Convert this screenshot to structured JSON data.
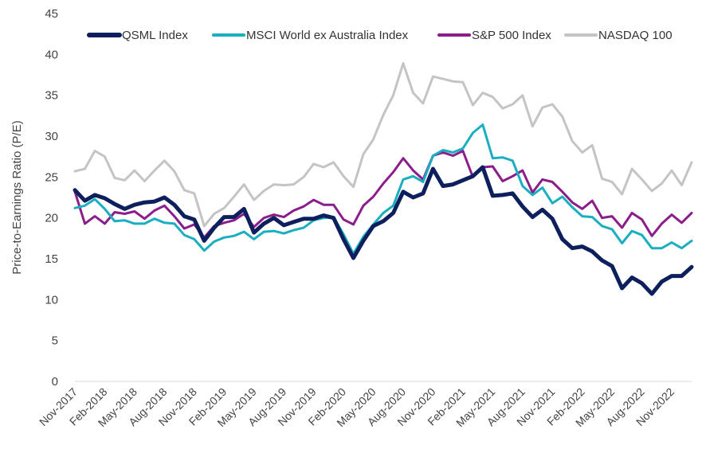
{
  "chart_data": {
    "type": "line",
    "title": "",
    "xlabel": "",
    "ylabel": "Price-to-Earnings Ratio (P/E)",
    "ylim": [
      0,
      45
    ],
    "yticks": [
      0,
      5,
      10,
      15,
      20,
      25,
      30,
      35,
      40,
      45
    ],
    "grid": false,
    "legend_position": "top",
    "x_tick_labels": [
      "Nov-2017",
      "Feb-2018",
      "May-2018",
      "Aug-2018",
      "Nov-2018",
      "Feb-2019",
      "May-2019",
      "Aug-2019",
      "Nov-2019",
      "Feb-2020",
      "May-2020",
      "Aug-2020",
      "Nov-2020",
      "Feb-2021",
      "May-2021",
      "Aug-2021",
      "Nov-2021",
      "Feb-2022",
      "May-2022",
      "Aug-2022",
      "Nov-2022"
    ],
    "x_tick_every": 3,
    "n_points": 63,
    "series": [
      {
        "name": "QSML Index",
        "color": "#0d1f5c",
        "values": [
          23.4,
          22.1,
          22.8,
          22.4,
          21.7,
          21.1,
          21.6,
          21.9,
          22.0,
          22.5,
          21.6,
          20.2,
          19.8,
          17.2,
          18.8,
          20.1,
          20.1,
          21.1,
          18.2,
          19.3,
          20.0,
          19.1,
          19.5,
          19.9,
          19.9,
          20.3,
          20.0,
          17.4,
          15.1,
          17.2,
          19.0,
          19.6,
          20.6,
          23.2,
          22.5,
          23.0,
          26.0,
          23.9,
          24.1,
          24.6,
          25.1,
          26.2,
          22.7,
          22.8,
          23.0,
          21.4,
          20.1,
          21.0,
          19.9,
          17.4,
          16.3,
          16.5,
          15.9,
          14.8,
          14.1,
          11.4,
          12.7,
          12.0,
          10.7,
          12.2,
          12.9,
          12.9,
          14.0
        ]
      },
      {
        "name": "MSCI World ex Australia Index",
        "color": "#1aafc0",
        "values": [
          21.2,
          21.5,
          22.3,
          21.1,
          19.6,
          19.7,
          19.3,
          19.3,
          19.9,
          19.4,
          19.3,
          17.9,
          17.4,
          16.0,
          17.1,
          17.6,
          17.8,
          18.3,
          17.4,
          18.3,
          18.4,
          18.1,
          18.5,
          18.8,
          19.7,
          20.0,
          20.1,
          18.0,
          15.6,
          17.7,
          19.2,
          20.6,
          21.5,
          24.7,
          25.1,
          24.4,
          27.6,
          28.3,
          28.0,
          28.5,
          30.4,
          31.4,
          27.3,
          27.4,
          27.0,
          23.9,
          22.8,
          23.7,
          21.8,
          22.6,
          21.3,
          20.2,
          20.1,
          19.0,
          18.6,
          16.9,
          18.4,
          17.9,
          16.3,
          16.3,
          17.0,
          16.3,
          17.2
        ]
      },
      {
        "name": "S&P 500 Index",
        "color": "#8b1e8b",
        "values": [
          23.2,
          19.3,
          20.2,
          19.3,
          20.7,
          20.5,
          20.8,
          19.9,
          20.9,
          21.5,
          20.2,
          18.7,
          19.2,
          17.6,
          19.0,
          19.4,
          19.7,
          20.5,
          18.9,
          20.0,
          20.4,
          20.1,
          20.9,
          21.4,
          22.2,
          21.6,
          21.6,
          19.8,
          19.2,
          21.5,
          22.6,
          24.2,
          25.6,
          27.3,
          25.8,
          24.7,
          27.6,
          28.0,
          27.6,
          28.2,
          25.0,
          26.2,
          26.3,
          24.5,
          25.1,
          25.8,
          23.1,
          24.7,
          24.4,
          23.2,
          21.9,
          21.1,
          22.1,
          20.0,
          20.2,
          18.8,
          20.6,
          19.8,
          17.8,
          19.3,
          20.4,
          19.4,
          20.6
        ]
      },
      {
        "name": "NASDAQ 100",
        "color": "#c4c4c4",
        "values": [
          25.7,
          26.0,
          28.2,
          27.5,
          24.9,
          24.6,
          25.8,
          24.5,
          25.8,
          27.0,
          25.7,
          23.4,
          23.0,
          19.0,
          20.5,
          21.2,
          22.6,
          24.1,
          22.2,
          23.3,
          24.1,
          24.0,
          24.1,
          25.0,
          26.6,
          26.2,
          26.8,
          25.1,
          23.8,
          27.8,
          29.6,
          32.6,
          35.0,
          38.9,
          35.3,
          34.0,
          37.3,
          37.0,
          36.7,
          36.6,
          33.8,
          35.3,
          34.8,
          33.4,
          33.9,
          35.0,
          31.2,
          33.5,
          33.9,
          32.4,
          29.4,
          28.0,
          28.9,
          24.8,
          24.4,
          22.9,
          26.0,
          24.7,
          23.3,
          24.2,
          25.8,
          24.0,
          26.8
        ]
      }
    ]
  }
}
